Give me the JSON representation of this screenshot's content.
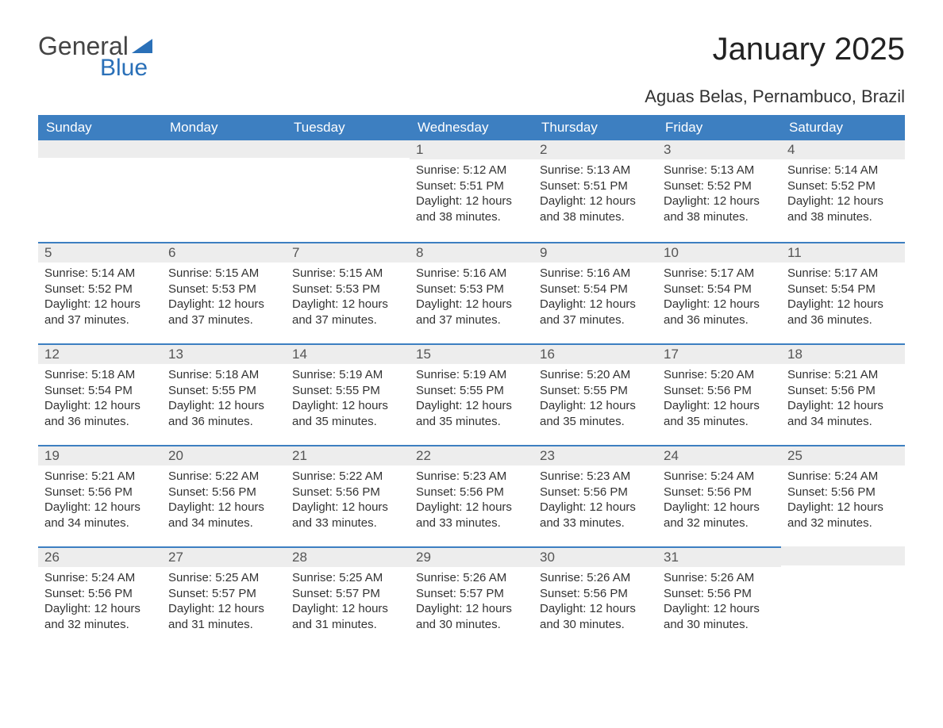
{
  "logo": {
    "text1": "General",
    "text2": "Blue",
    "flag_color": "#2a70b8"
  },
  "title": "January 2025",
  "location": "Aguas Belas, Pernambuco, Brazil",
  "weekdays": [
    "Sunday",
    "Monday",
    "Tuesday",
    "Wednesday",
    "Thursday",
    "Friday",
    "Saturday"
  ],
  "colors": {
    "header_bg": "#3d7fc1",
    "header_text": "#ffffff",
    "daybar_bg": "#ededed",
    "daybar_border": "#3d7fc1",
    "text": "#333333"
  },
  "leading_blanks": 3,
  "trailing_blanks": 1,
  "days": [
    {
      "n": 1,
      "sunrise": "5:12 AM",
      "sunset": "5:51 PM",
      "daylight": "12 hours and 38 minutes."
    },
    {
      "n": 2,
      "sunrise": "5:13 AM",
      "sunset": "5:51 PM",
      "daylight": "12 hours and 38 minutes."
    },
    {
      "n": 3,
      "sunrise": "5:13 AM",
      "sunset": "5:52 PM",
      "daylight": "12 hours and 38 minutes."
    },
    {
      "n": 4,
      "sunrise": "5:14 AM",
      "sunset": "5:52 PM",
      "daylight": "12 hours and 38 minutes."
    },
    {
      "n": 5,
      "sunrise": "5:14 AM",
      "sunset": "5:52 PM",
      "daylight": "12 hours and 37 minutes."
    },
    {
      "n": 6,
      "sunrise": "5:15 AM",
      "sunset": "5:53 PM",
      "daylight": "12 hours and 37 minutes."
    },
    {
      "n": 7,
      "sunrise": "5:15 AM",
      "sunset": "5:53 PM",
      "daylight": "12 hours and 37 minutes."
    },
    {
      "n": 8,
      "sunrise": "5:16 AM",
      "sunset": "5:53 PM",
      "daylight": "12 hours and 37 minutes."
    },
    {
      "n": 9,
      "sunrise": "5:16 AM",
      "sunset": "5:54 PM",
      "daylight": "12 hours and 37 minutes."
    },
    {
      "n": 10,
      "sunrise": "5:17 AM",
      "sunset": "5:54 PM",
      "daylight": "12 hours and 36 minutes."
    },
    {
      "n": 11,
      "sunrise": "5:17 AM",
      "sunset": "5:54 PM",
      "daylight": "12 hours and 36 minutes."
    },
    {
      "n": 12,
      "sunrise": "5:18 AM",
      "sunset": "5:54 PM",
      "daylight": "12 hours and 36 minutes."
    },
    {
      "n": 13,
      "sunrise": "5:18 AM",
      "sunset": "5:55 PM",
      "daylight": "12 hours and 36 minutes."
    },
    {
      "n": 14,
      "sunrise": "5:19 AM",
      "sunset": "5:55 PM",
      "daylight": "12 hours and 35 minutes."
    },
    {
      "n": 15,
      "sunrise": "5:19 AM",
      "sunset": "5:55 PM",
      "daylight": "12 hours and 35 minutes."
    },
    {
      "n": 16,
      "sunrise": "5:20 AM",
      "sunset": "5:55 PM",
      "daylight": "12 hours and 35 minutes."
    },
    {
      "n": 17,
      "sunrise": "5:20 AM",
      "sunset": "5:56 PM",
      "daylight": "12 hours and 35 minutes."
    },
    {
      "n": 18,
      "sunrise": "5:21 AM",
      "sunset": "5:56 PM",
      "daylight": "12 hours and 34 minutes."
    },
    {
      "n": 19,
      "sunrise": "5:21 AM",
      "sunset": "5:56 PM",
      "daylight": "12 hours and 34 minutes."
    },
    {
      "n": 20,
      "sunrise": "5:22 AM",
      "sunset": "5:56 PM",
      "daylight": "12 hours and 34 minutes."
    },
    {
      "n": 21,
      "sunrise": "5:22 AM",
      "sunset": "5:56 PM",
      "daylight": "12 hours and 33 minutes."
    },
    {
      "n": 22,
      "sunrise": "5:23 AM",
      "sunset": "5:56 PM",
      "daylight": "12 hours and 33 minutes."
    },
    {
      "n": 23,
      "sunrise": "5:23 AM",
      "sunset": "5:56 PM",
      "daylight": "12 hours and 33 minutes."
    },
    {
      "n": 24,
      "sunrise": "5:24 AM",
      "sunset": "5:56 PM",
      "daylight": "12 hours and 32 minutes."
    },
    {
      "n": 25,
      "sunrise": "5:24 AM",
      "sunset": "5:56 PM",
      "daylight": "12 hours and 32 minutes."
    },
    {
      "n": 26,
      "sunrise": "5:24 AM",
      "sunset": "5:56 PM",
      "daylight": "12 hours and 32 minutes."
    },
    {
      "n": 27,
      "sunrise": "5:25 AM",
      "sunset": "5:57 PM",
      "daylight": "12 hours and 31 minutes."
    },
    {
      "n": 28,
      "sunrise": "5:25 AM",
      "sunset": "5:57 PM",
      "daylight": "12 hours and 31 minutes."
    },
    {
      "n": 29,
      "sunrise": "5:26 AM",
      "sunset": "5:57 PM",
      "daylight": "12 hours and 30 minutes."
    },
    {
      "n": 30,
      "sunrise": "5:26 AM",
      "sunset": "5:56 PM",
      "daylight": "12 hours and 30 minutes."
    },
    {
      "n": 31,
      "sunrise": "5:26 AM",
      "sunset": "5:56 PM",
      "daylight": "12 hours and 30 minutes."
    }
  ],
  "labels": {
    "sunrise": "Sunrise:",
    "sunset": "Sunset:",
    "daylight": "Daylight:"
  }
}
